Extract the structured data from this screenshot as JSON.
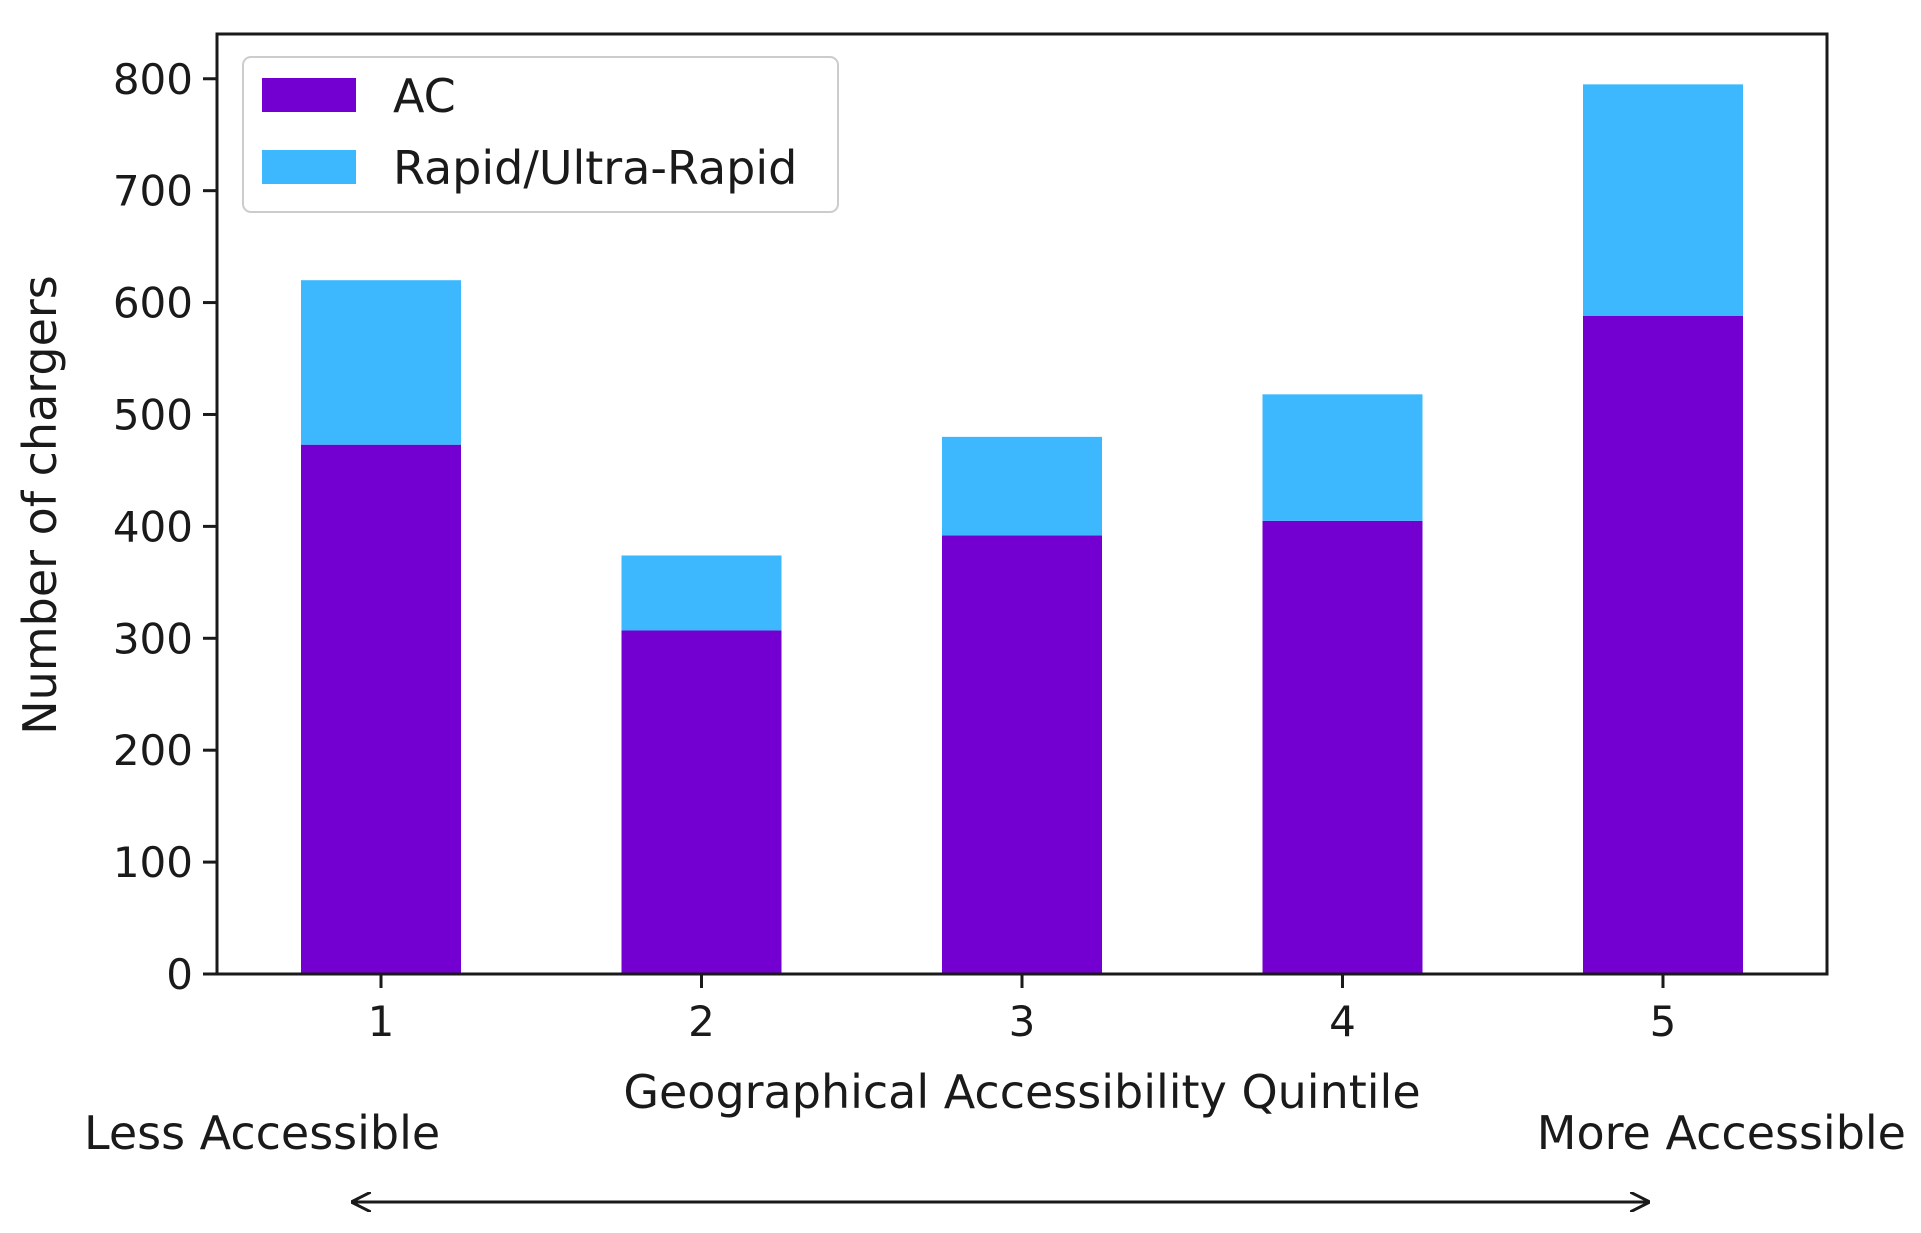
{
  "chart_data": {
    "type": "bar",
    "stacked": true,
    "categories": [
      "1",
      "2",
      "3",
      "4",
      "5"
    ],
    "series": [
      {
        "name": "AC",
        "color": "#7300d1",
        "values": [
          473,
          307,
          392,
          405,
          588
        ]
      },
      {
        "name": "Rapid/Ultra-Rapid",
        "color": "#3db8ff",
        "values": [
          147,
          67,
          88,
          113,
          207
        ]
      }
    ],
    "xlabel": "Geographical Accessibility Quintile",
    "ylabel": "Number of chargers",
    "ylim": [
      0,
      840
    ],
    "yticks": [
      0,
      100,
      200,
      300,
      400,
      500,
      600,
      700,
      800
    ],
    "grid": false,
    "legend": "top-left",
    "annotations": {
      "left": "Less Accessible",
      "right": "More Accessible",
      "arrow": "double-headed"
    }
  }
}
